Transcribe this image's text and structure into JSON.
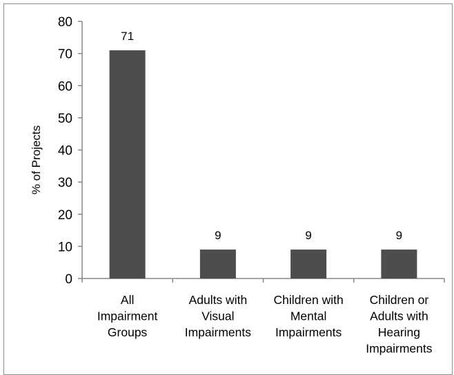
{
  "chart_data": {
    "type": "bar",
    "title": "",
    "xlabel": "",
    "ylabel": "% of Projects",
    "ylim": [
      0,
      80
    ],
    "yticks": [
      0,
      10,
      20,
      30,
      40,
      50,
      60,
      70,
      80
    ],
    "grid": false,
    "legend": "none",
    "bar_color": "#4d4d4d",
    "categories": [
      [
        "All",
        "Impairment",
        "Groups"
      ],
      [
        "Adults with",
        "Visual",
        "Impairments"
      ],
      [
        "Children with",
        "Mental",
        "Impairments"
      ],
      [
        "Children or",
        "Adults with",
        "Hearing",
        "Impairments"
      ]
    ],
    "values": [
      71,
      9,
      9,
      9
    ],
    "data_labels": [
      "71",
      "9",
      "9",
      "9"
    ]
  }
}
